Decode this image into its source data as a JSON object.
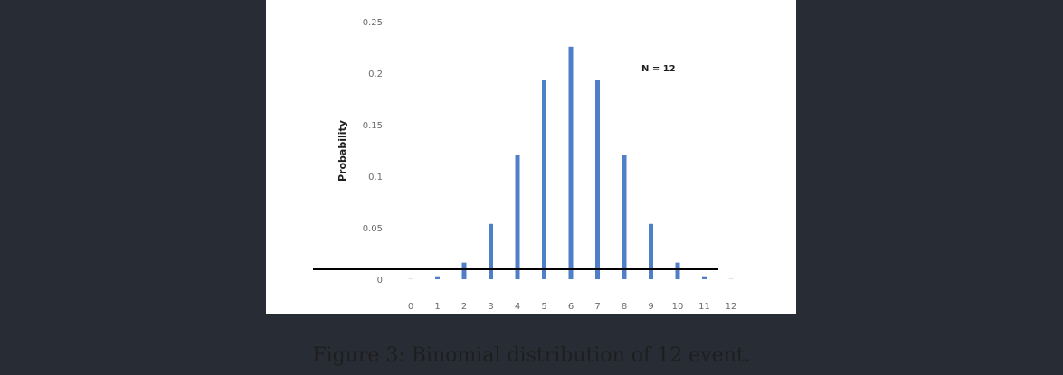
{
  "colors": {
    "background": "#282c35",
    "panel": "#ffffff",
    "bar": "#4f7fc8",
    "baseline": "#000000",
    "tick_text": "#6a6a6a",
    "caption_text": "#1e1e1e"
  },
  "caption": "Figure 3: Binomial distribution of 12 event.",
  "chart_data": {
    "type": "bar",
    "title": "",
    "xlabel": "",
    "ylabel": "Probability",
    "annotation": "N = 12",
    "categories": [
      "0",
      "1",
      "2",
      "3",
      "4",
      "5",
      "6",
      "7",
      "8",
      "9",
      "10",
      "11",
      "12"
    ],
    "values": [
      0.0002,
      0.0029,
      0.0161,
      0.0537,
      0.1208,
      0.1934,
      0.2256,
      0.1934,
      0.1208,
      0.0537,
      0.0161,
      0.0029,
      0.0002
    ],
    "yticks": [
      "0",
      "0.05",
      "0.1",
      "0.15",
      "0.2",
      "0.25"
    ],
    "ylim": [
      0,
      0.25
    ],
    "grid": false,
    "legend": "none"
  }
}
